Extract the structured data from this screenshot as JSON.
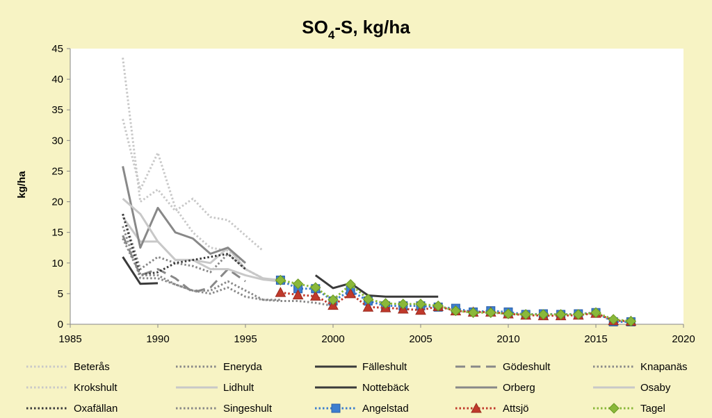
{
  "chart_data": {
    "type": "line",
    "title": {
      "base": "SO",
      "subscript": "4",
      "rest": "-S, kg/ha"
    },
    "ylabel": "kg/ha",
    "xlabel": "",
    "xlim": [
      1985,
      2020
    ],
    "ylim": [
      0,
      45
    ],
    "xticks": [
      1985,
      1990,
      1995,
      2000,
      2005,
      2010,
      2015,
      2020
    ],
    "yticks": [
      0,
      5,
      10,
      15,
      20,
      25,
      30,
      35,
      40,
      45
    ],
    "grid": false,
    "legend_position": "bottom",
    "colors": {
      "background": "#f7f3c4",
      "plot_area": "#ffffff",
      "light_gray": "#c8c8c8",
      "mid_gray": "#888888",
      "dark_gray": "#3a3a3a",
      "angelstad": "#3d7ecf",
      "attsjo": "#c0392b",
      "tagel": "#8ab83a"
    },
    "series": [
      {
        "name": "Beterås",
        "style": "dotted",
        "color": "#c8c8c8",
        "marker": "none",
        "x": [
          1988,
          1989,
          1990,
          1991,
          1992,
          1993,
          1994,
          1995,
          1996
        ],
        "y": [
          43.5,
          20,
          22,
          18.5,
          20.5,
          17.5,
          17,
          14.5,
          12
        ]
      },
      {
        "name": "Eneryda",
        "style": "dotted",
        "color": "#888888",
        "marker": "none",
        "x": [
          1988,
          1989,
          1990,
          1991,
          1992,
          1993,
          1994,
          1995,
          1996,
          1997
        ],
        "y": [
          18,
          9,
          11,
          10,
          9.5,
          8.5,
          11.5,
          9,
          7.5,
          7
        ]
      },
      {
        "name": "Fälleshult",
        "style": "solid",
        "color": "#3a3a3a",
        "marker": "none",
        "x": [
          1988,
          1989,
          1990
        ],
        "y": [
          11,
          6.6,
          6.7
        ]
      },
      {
        "name": "Gödeshult",
        "style": "dashed",
        "color": "#888888",
        "marker": "none",
        "x": [
          1988,
          1989,
          1990,
          1991,
          1992,
          1993,
          1994,
          1995
        ],
        "y": [
          14.5,
          8,
          9,
          7.5,
          5.2,
          6,
          9,
          7
        ]
      },
      {
        "name": "Knapanäs",
        "style": "dotted",
        "color": "#888888",
        "marker": "none",
        "x": [
          1988,
          1989,
          1990,
          1991,
          1992,
          1993,
          1994,
          1995,
          1996,
          1997
        ],
        "y": [
          16,
          7.5,
          7.5,
          6.5,
          5.5,
          5,
          6,
          4.5,
          4,
          4
        ]
      },
      {
        "name": "Krokshult",
        "style": "dotted",
        "color": "#c8c8c8",
        "marker": "none",
        "x": [
          1988,
          1989,
          1990,
          1991,
          1992,
          1993,
          1994,
          1995
        ],
        "y": [
          33.5,
          22,
          28,
          19,
          15,
          12.5,
          12,
          10
        ]
      },
      {
        "name": "Lidhult",
        "style": "solid",
        "color": "#c8c8c8",
        "marker": "none",
        "x": [
          1988,
          1989,
          1990,
          1991,
          1992,
          1993,
          1994,
          1995,
          1996,
          1997
        ],
        "y": [
          17.5,
          13.5,
          13.5,
          10.5,
          10.5,
          10,
          12.5,
          9,
          7.5,
          7.2
        ]
      },
      {
        "name": "Nottebäck",
        "style": "solid",
        "color": "#3a3a3a",
        "marker": "none",
        "x": [
          1999,
          2000,
          2001,
          2002,
          2003,
          2004,
          2005,
          2006
        ],
        "y": [
          8,
          5.9,
          6.7,
          4.7,
          4.5,
          4.5,
          4.5,
          4.5
        ]
      },
      {
        "name": "Orberg",
        "style": "solid",
        "color": "#888888",
        "marker": "none",
        "x": [
          1988,
          1989,
          1990,
          1991,
          1992,
          1993,
          1994,
          1995
        ],
        "y": [
          25.8,
          12.5,
          19,
          15,
          14,
          11.5,
          12.5,
          10
        ]
      },
      {
        "name": "Osaby",
        "style": "solid",
        "color": "#c8c8c8",
        "marker": "none",
        "x": [
          1988,
          1989,
          1990,
          1991,
          1992,
          1993,
          1994,
          1995,
          1996,
          1997
        ],
        "y": [
          20.5,
          18,
          13.5,
          10.5,
          10.5,
          9,
          9,
          8,
          7.3,
          7
        ]
      },
      {
        "name": "Oxafällan",
        "style": "dotted",
        "color": "#3a3a3a",
        "marker": "none",
        "x": [
          1988,
          1989,
          1990,
          1991,
          1992,
          1993,
          1994,
          1995
        ],
        "y": [
          18,
          8,
          8.5,
          10,
          10.5,
          11,
          11.5,
          9
        ]
      },
      {
        "name": "Singeshult",
        "style": "dotted",
        "color": "#888888",
        "marker": "none",
        "x": [
          1988,
          1989,
          1990,
          1991,
          1992,
          1993,
          1994,
          1995,
          1996,
          1997,
          1998,
          1999,
          2000
        ],
        "y": [
          14,
          8,
          8,
          6.5,
          5.5,
          5.5,
          7,
          5.5,
          4,
          3.8,
          3.8,
          3.5,
          3
        ]
      },
      {
        "name": "Angelstad",
        "style": "dotted",
        "color": "#3d7ecf",
        "marker": "square",
        "x": [
          1997,
          1998,
          1999,
          2000,
          2001,
          2002,
          2003,
          2004,
          2005,
          2006,
          2007,
          2008,
          2009,
          2010,
          2011,
          2012,
          2013,
          2014,
          2015,
          2016,
          2017
        ],
        "y": [
          7.2,
          5.8,
          5.8,
          3.8,
          5.5,
          3.8,
          3,
          3,
          3,
          2.8,
          2.6,
          2,
          2.2,
          2,
          1.6,
          1.7,
          1.6,
          1.7,
          1.9,
          0.4,
          0.4
        ]
      },
      {
        "name": "Attsjö",
        "style": "dotted",
        "color": "#c0392b",
        "marker": "triangle",
        "x": [
          1997,
          1998,
          1999,
          2000,
          2001,
          2002,
          2003,
          2004,
          2005,
          2006,
          2007,
          2008,
          2009,
          2010,
          2011,
          2012,
          2013,
          2014,
          2015,
          2016,
          2017
        ],
        "y": [
          5.2,
          4.8,
          4.6,
          3.1,
          5,
          2.8,
          2.7,
          2.5,
          2.3,
          2.9,
          2.2,
          2,
          2,
          1.7,
          1.5,
          1.4,
          1.4,
          1.5,
          1.8,
          0.6,
          0.5
        ]
      },
      {
        "name": "Tagel",
        "style": "dotted",
        "color": "#8ab83a",
        "marker": "diamond",
        "x": [
          1997,
          1998,
          1999,
          2000,
          2001,
          2002,
          2003,
          2004,
          2005,
          2006,
          2007,
          2008,
          2009,
          2010,
          2011,
          2012,
          2013,
          2014,
          2015,
          2016,
          2017
        ],
        "y": [
          7.2,
          6.6,
          6,
          4,
          6.5,
          4.1,
          3.4,
          3.3,
          3.3,
          3,
          2.2,
          1.9,
          1.9,
          1.7,
          1.6,
          1.6,
          1.6,
          1.6,
          1.9,
          0.8,
          0.5
        ]
      }
    ]
  }
}
